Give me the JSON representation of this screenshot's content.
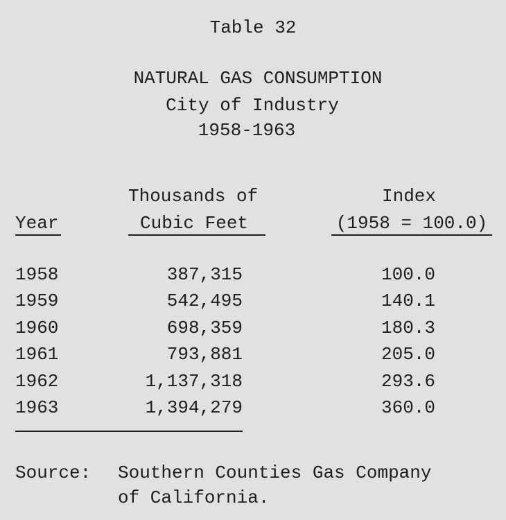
{
  "table_label": "Table 32",
  "title": "NATURAL GAS CONSUMPTION",
  "subtitle": "City of Industry",
  "period": "1958-1963",
  "table": {
    "headers": [
      [
        "Year"
      ],
      [
        "Thousands of",
        "Cubic Feet"
      ],
      [
        "Index",
        "(1958 = 100.0)"
      ]
    ],
    "rows": [
      [
        "1958",
        "387,315",
        "100.0"
      ],
      [
        "1959",
        "542,495",
        "140.1"
      ],
      [
        "1960",
        "698,359",
        "180.3"
      ],
      [
        "1961",
        "793,881",
        "205.0"
      ],
      [
        "1962",
        "1,137,318",
        "293.6"
      ],
      [
        "1963",
        "1,394,279",
        "360.0"
      ]
    ]
  },
  "source": {
    "label": "Source:",
    "lines": [
      "Southern Counties Gas Company",
      "of California."
    ]
  }
}
